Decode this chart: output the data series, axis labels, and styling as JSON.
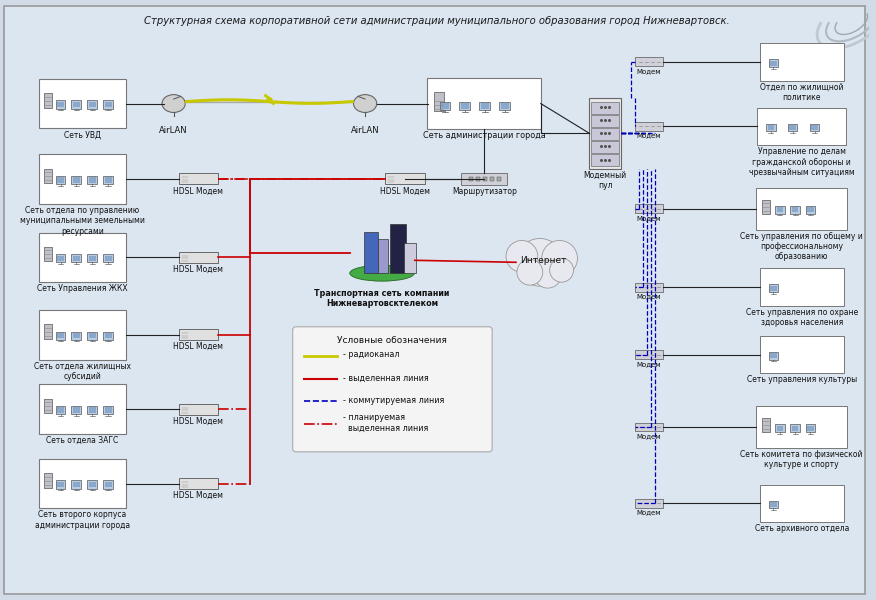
{
  "title": "Структурная схема корпоративной сети администрации муниципального образования город Нижневартовск.",
  "bg_color": "#dce6f1",
  "left_net_labels": [
    "Сеть УВД",
    "Сеть отдела по управлению\nмуниципальными земельными\nресурсами",
    "Сеть Управления ЖКХ",
    "Сеть отдела жилищных\nсубсидий",
    "Сеть отдела ЗАГС",
    "Сеть второго корпуса\nадминистрации города"
  ],
  "right_net_labels": [
    "Отдел по жилищной\nполитике",
    "Управление по делам\nгражданской обороны и\nчрезвычайным ситуациям",
    "Сеть управления по общему и\nпрофессиональному\nобразованию",
    "Сеть управления по охране\nздоровья населения",
    "Сеть управления культуры",
    "Сеть комитета по физической\nкультуре и спорту",
    "Сеть архивного отдела"
  ],
  "legend_entries": [
    {
      "text": "- радиоканал",
      "color": "#c8c800",
      "lw": 2.0,
      "ls": "solid"
    },
    {
      "text": "- выделенная линия",
      "color": "#cc0000",
      "lw": 1.5,
      "ls": "solid"
    },
    {
      "text": "- коммутируемая линия",
      "color": "#0000bb",
      "lw": 1.2,
      "ls": "dashed"
    },
    {
      "text": "- планируемая\n  выделенная линия",
      "color": "#cc0000",
      "lw": 1.2,
      "ls": "dashdot"
    }
  ]
}
